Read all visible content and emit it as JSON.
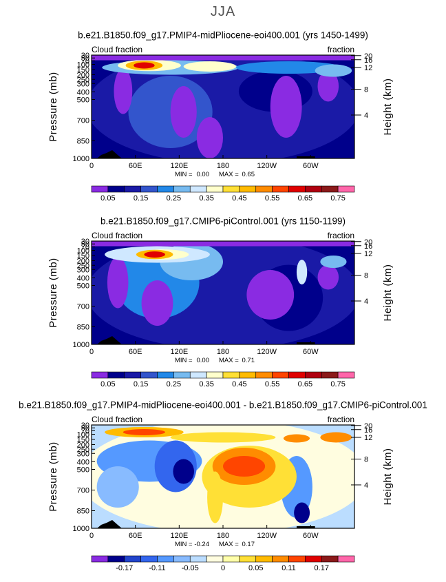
{
  "page": {
    "season": "JJA"
  },
  "chart_data": [
    {
      "type": "heatmap",
      "title": "b.e21.B1850.f09_g17.PMIP4-midPliocene-eoi400.001 (yrs 1450-1499)",
      "left_label": "Cloud fraction",
      "right_label": "fraction",
      "ylabel": "Pressure (mb)",
      "y2label": "Height (km)",
      "xticks": [
        "0",
        "60E",
        "120E",
        "180",
        "120W",
        "60W"
      ],
      "yticks": [
        "30",
        "50",
        "70",
        "100",
        "150",
        "200",
        "250",
        "300",
        "400",
        "500",
        "700",
        "850",
        "1000"
      ],
      "y2ticks": [
        "20",
        "16",
        "12",
        "8",
        "4"
      ],
      "stats": {
        "min_label": "MIN =",
        "min": "0.00",
        "max_label": "MAX =",
        "max": "0.65"
      },
      "colorbar_labels": [
        "0.05",
        "0.15",
        "0.25",
        "0.35",
        "0.45",
        "0.55",
        "0.65",
        "0.75"
      ],
      "colors": [
        "#8a2be2",
        "#00008b",
        "#1a1aa6",
        "#3355cc",
        "#2288e8",
        "#77bbf0",
        "#cfe8ff",
        "#ffffcc",
        "#ffe036",
        "#ffbb00",
        "#ff8c00",
        "#ff4500",
        "#e00000",
        "#b00010",
        "#8b1a1a",
        "#ff66aa"
      ],
      "grid": false
    },
    {
      "type": "heatmap",
      "title": "b.e21.B1850.f09_g17.CMIP6-piControl.001 (yrs 1150-1199)",
      "left_label": "Cloud fraction",
      "right_label": "fraction",
      "ylabel": "Pressure (mb)",
      "y2label": "Height (km)",
      "xticks": [
        "0",
        "60E",
        "120E",
        "180",
        "120W",
        "60W"
      ],
      "yticks": [
        "30",
        "50",
        "70",
        "100",
        "150",
        "200",
        "250",
        "300",
        "400",
        "500",
        "700",
        "850",
        "1000"
      ],
      "y2ticks": [
        "20",
        "16",
        "12",
        "8",
        "4"
      ],
      "stats": {
        "min_label": "MIN =",
        "min": "0.00",
        "max_label": "MAX =",
        "max": "0.71"
      },
      "colorbar_labels": [
        "0.05",
        "0.15",
        "0.25",
        "0.35",
        "0.45",
        "0.55",
        "0.65",
        "0.75"
      ],
      "colors": [
        "#8a2be2",
        "#00008b",
        "#1a1aa6",
        "#3355cc",
        "#2288e8",
        "#77bbf0",
        "#cfe8ff",
        "#ffffcc",
        "#ffe036",
        "#ffbb00",
        "#ff8c00",
        "#ff4500",
        "#e00000",
        "#b00010",
        "#8b1a1a",
        "#ff66aa"
      ],
      "grid": false
    },
    {
      "type": "heatmap",
      "title": "b.e21.B1850.f09_g17.PMIP4-midPliocene-eoi400.001 - b.e21.B1850.f09_g17.CMIP6-piControl.001",
      "left_label": "Cloud fraction",
      "right_label": "fraction",
      "ylabel": "Pressure (mb)",
      "y2label": "Height (km)",
      "xticks": [
        "0",
        "60E",
        "120E",
        "180",
        "120W",
        "60W"
      ],
      "yticks": [
        "30",
        "50",
        "70",
        "100",
        "150",
        "200",
        "250",
        "300",
        "400",
        "500",
        "700",
        "850",
        "1000"
      ],
      "y2ticks": [
        "20",
        "16",
        "12",
        "8",
        "4"
      ],
      "stats": {
        "min_label": "MIN =",
        "min": "-0.24",
        "max_label": "MAX =",
        "max": "0.17"
      },
      "colorbar_labels": [
        "-0.17",
        "-0.11",
        "-0.05",
        "0",
        "0.05",
        "0.11",
        "0.17"
      ],
      "colors": [
        "#8a2be2",
        "#00008b",
        "#2244cc",
        "#3366ee",
        "#5599ff",
        "#88bbff",
        "#bbddff",
        "#fffde0",
        "#ffffaa",
        "#ffe036",
        "#ffbb00",
        "#ff8c00",
        "#ff4500",
        "#e00000",
        "#8b1a1a",
        "#ff66aa"
      ],
      "grid": false
    }
  ]
}
